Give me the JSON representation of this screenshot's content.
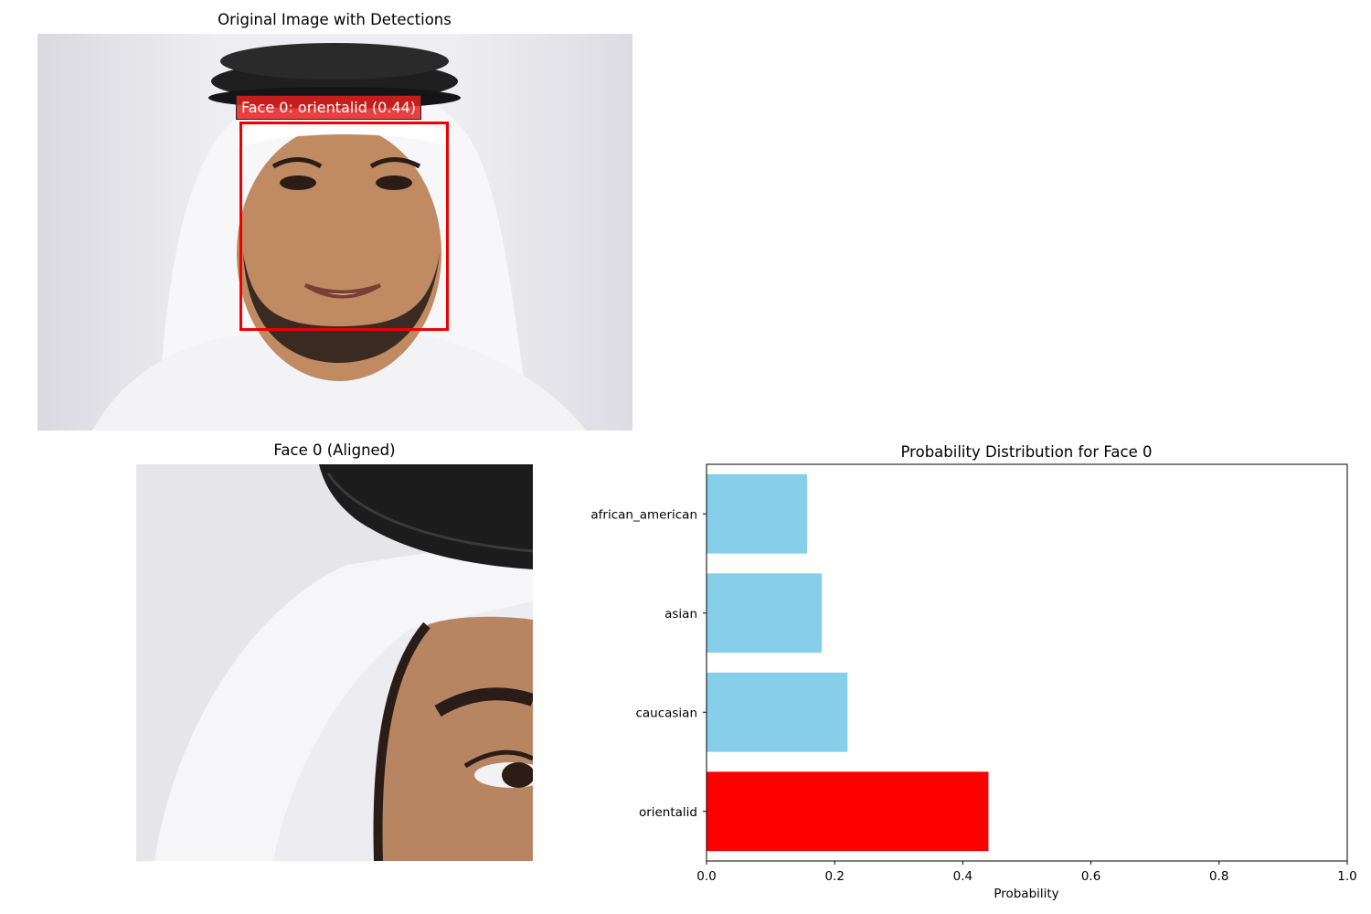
{
  "top_panel": {
    "title": "Original Image with Detections",
    "detection_label": "Face 0: orientalid (0.44)",
    "box_color": "#ee0000"
  },
  "aligned_panel": {
    "title": "Face 0 (Aligned)"
  },
  "chart_data": {
    "type": "bar",
    "orientation": "horizontal",
    "title": "Probability Distribution for Face 0",
    "xlabel": "Probability",
    "ylabel": "",
    "xlim": [
      0,
      1
    ],
    "xticks": [
      "0.0",
      "0.2",
      "0.4",
      "0.6",
      "0.8",
      "1.0"
    ],
    "categories": [
      "orientalid",
      "caucasian",
      "asian",
      "african_american"
    ],
    "values": [
      0.44,
      0.22,
      0.18,
      0.157
    ],
    "colors": [
      "#ff0000",
      "#87ceeb",
      "#87ceeb",
      "#87ceeb"
    ],
    "grid": false
  }
}
